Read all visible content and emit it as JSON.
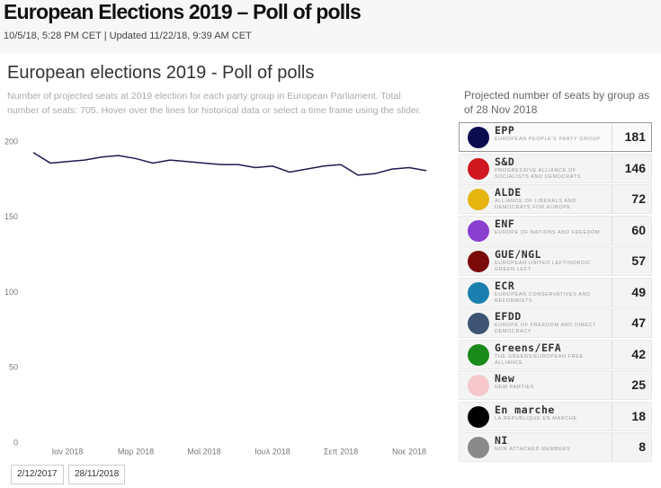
{
  "header": {
    "title": "European Elections 2019 – Poll of polls",
    "dateline": "10/5/18, 5:28 PM CET | Updated 11/22/18, 9:39 AM CET"
  },
  "chart_data": {
    "type": "line",
    "title": "European elections 2019 - Poll of polls",
    "subtitle": "Number of projected seats at 2019 election for each party group in European Parliament. Total number of seats: 705. Hover over the lines for historical data or select a time frame using the slider.",
    "categories": [
      null,
      null,
      "Ιαν 2018",
      null,
      null,
      null,
      "Μαρ 2018",
      null,
      null,
      null,
      "Μαϊ 2018",
      null,
      null,
      null,
      "Ιουλ 2018",
      null,
      null,
      null,
      "Σεπ 2018",
      null,
      null,
      null,
      "Νοε 2018",
      null
    ],
    "series": [
      {
        "color": "#1b1b4f",
        "values": [
          193,
          186,
          187,
          188,
          190,
          191,
          189,
          186,
          188,
          187,
          186,
          185,
          185,
          183,
          184,
          180,
          182,
          184,
          185,
          178,
          179,
          182,
          183,
          181
        ]
      }
    ],
    "ylim": [
      0,
      200
    ],
    "yticks": [
      0,
      50,
      100,
      150,
      200
    ]
  },
  "range": [
    "2/12/2017",
    "28/11/2018"
  ],
  "panel": {
    "title": "Projected number of seats by group as of 28 Nov 2018",
    "groups": [
      {
        "name": "EPP",
        "description": "EUROPEAN PEOPLE'S PARTY GROUP",
        "seats": 181,
        "color": "#0b0b4f"
      },
      {
        "name": "S&D",
        "description": "PROGRESSIVE ALLIANCE OF SOCIALISTS AND DEMOCRATS",
        "seats": 146,
        "color": "#d0161e"
      },
      {
        "name": "ALDE",
        "description": "ALLIANCE OF LIBERALS AND DEMOCRATS FOR EUROPE",
        "seats": 72,
        "color": "#e6b40f"
      },
      {
        "name": "ENF",
        "description": "EUROPE OF NATIONS AND FREEDOM",
        "seats": 60,
        "color": "#8a3fd1"
      },
      {
        "name": "GUE/NGL",
        "description": "EUROPEAN UNITED LEFT/NORDIC GREEN LEFT",
        "seats": 57,
        "color": "#7a0a0a"
      },
      {
        "name": "ECR",
        "description": "EUROPEAN CONSERVATIVES AND REFORMISTS",
        "seats": 49,
        "color": "#1a7fae"
      },
      {
        "name": "EFDD",
        "description": "EUROPE OF FREEDOM AND DIRECT DEMOCRACY",
        "seats": 47,
        "color": "#3d5573"
      },
      {
        "name": "Greens/EFA",
        "description": "THE GREENS/EUROPEAN FREE ALLIANCE",
        "seats": 42,
        "color": "#1a8a1a"
      },
      {
        "name": "New",
        "description": "NEW PARTIES",
        "seats": 25,
        "color": "#f6c8cc"
      },
      {
        "name": "En marche",
        "description": "LA REPUBLIQUE EN MARCHE",
        "seats": 18,
        "color": "#000000"
      },
      {
        "name": "NI",
        "description": "NON-ATTACHED MEMBERS",
        "seats": 8,
        "color": "#8a8a8a"
      }
    ]
  }
}
